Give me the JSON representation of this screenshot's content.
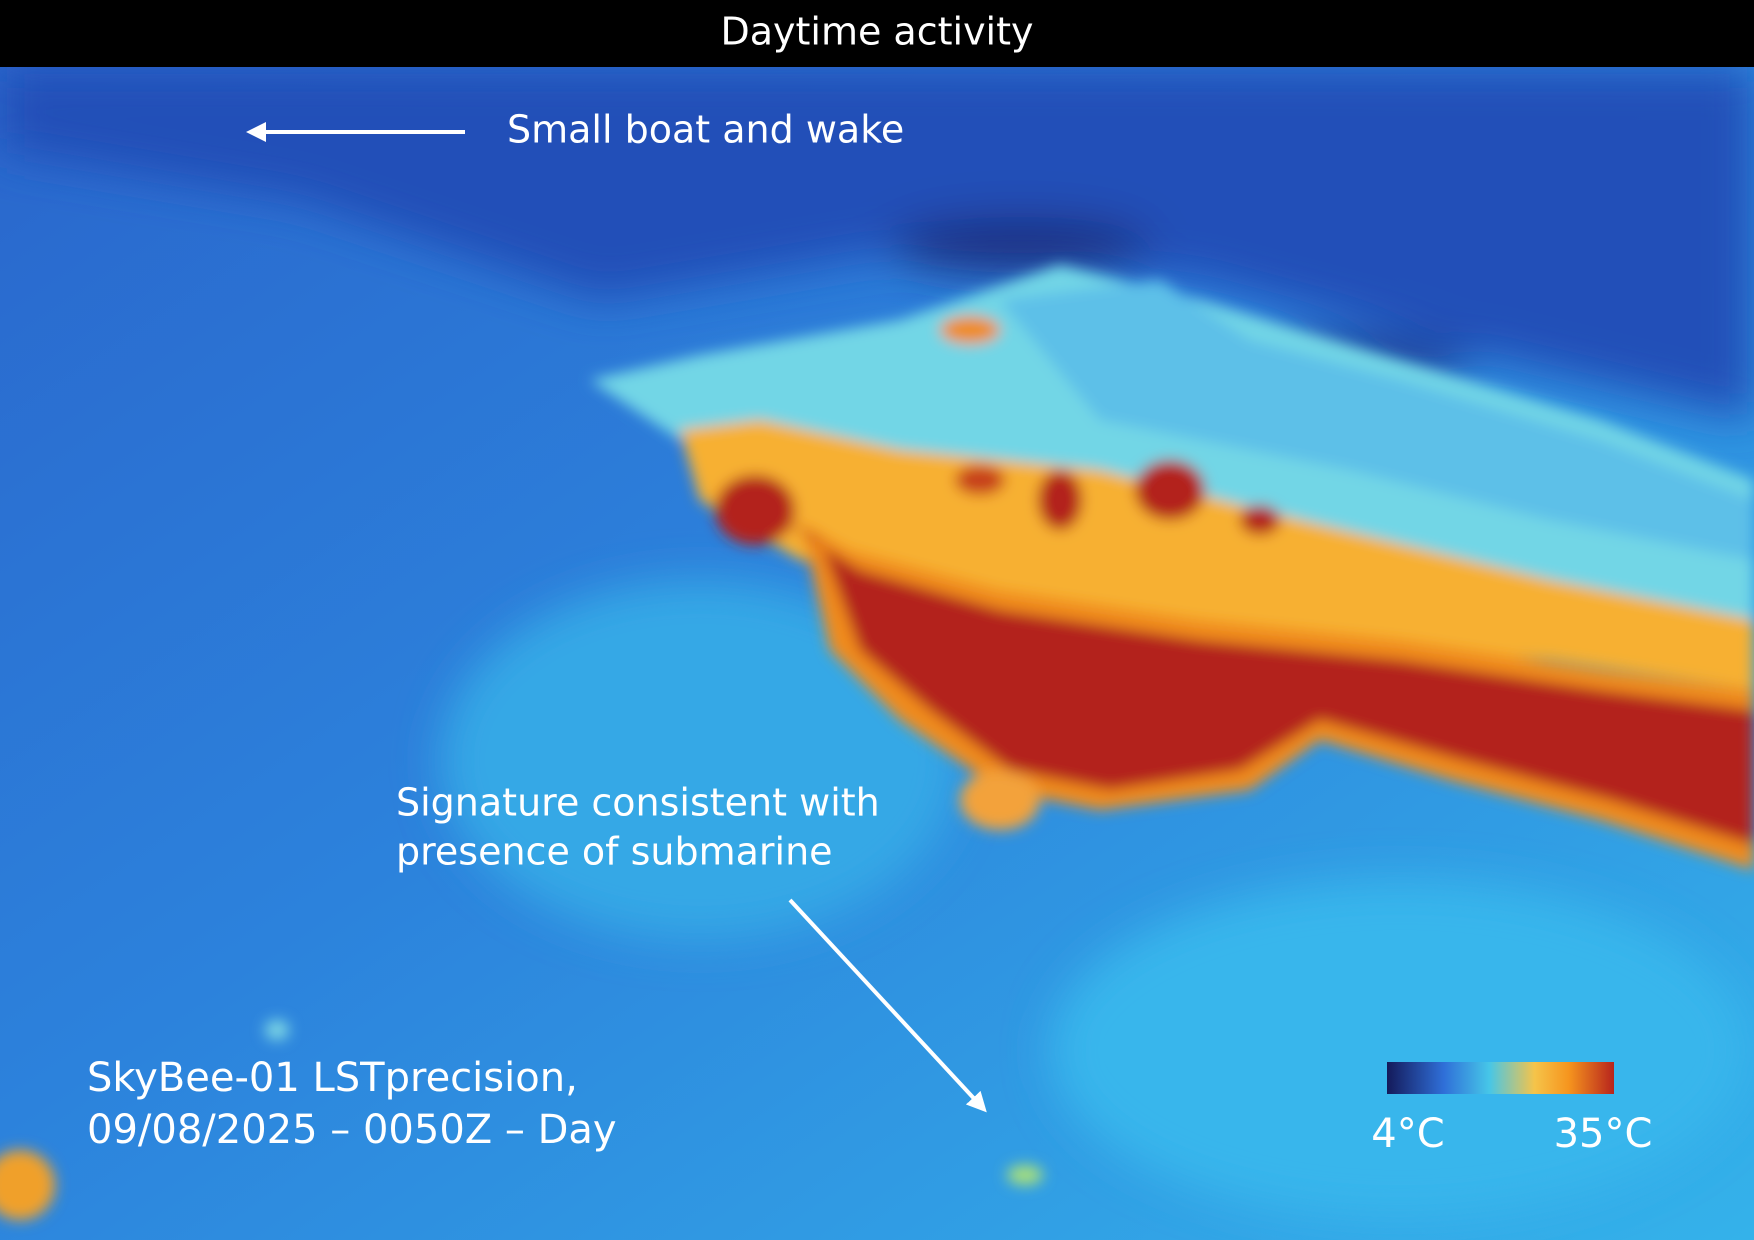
{
  "header": {
    "title": "Daytime activity"
  },
  "annotations": [
    {
      "lines": [
        "Small boat and wake"
      ]
    },
    {
      "lines": [
        "Signature consistent with",
        "presence of submarine"
      ]
    }
  ],
  "caption": {
    "lines": [
      "SkyBee-01 LSTprecision,",
      "09/08/2025 – 0050Z – Day"
    ]
  },
  "colorbar": {
    "min_label": "4°C",
    "max_label": "35°C"
  }
}
